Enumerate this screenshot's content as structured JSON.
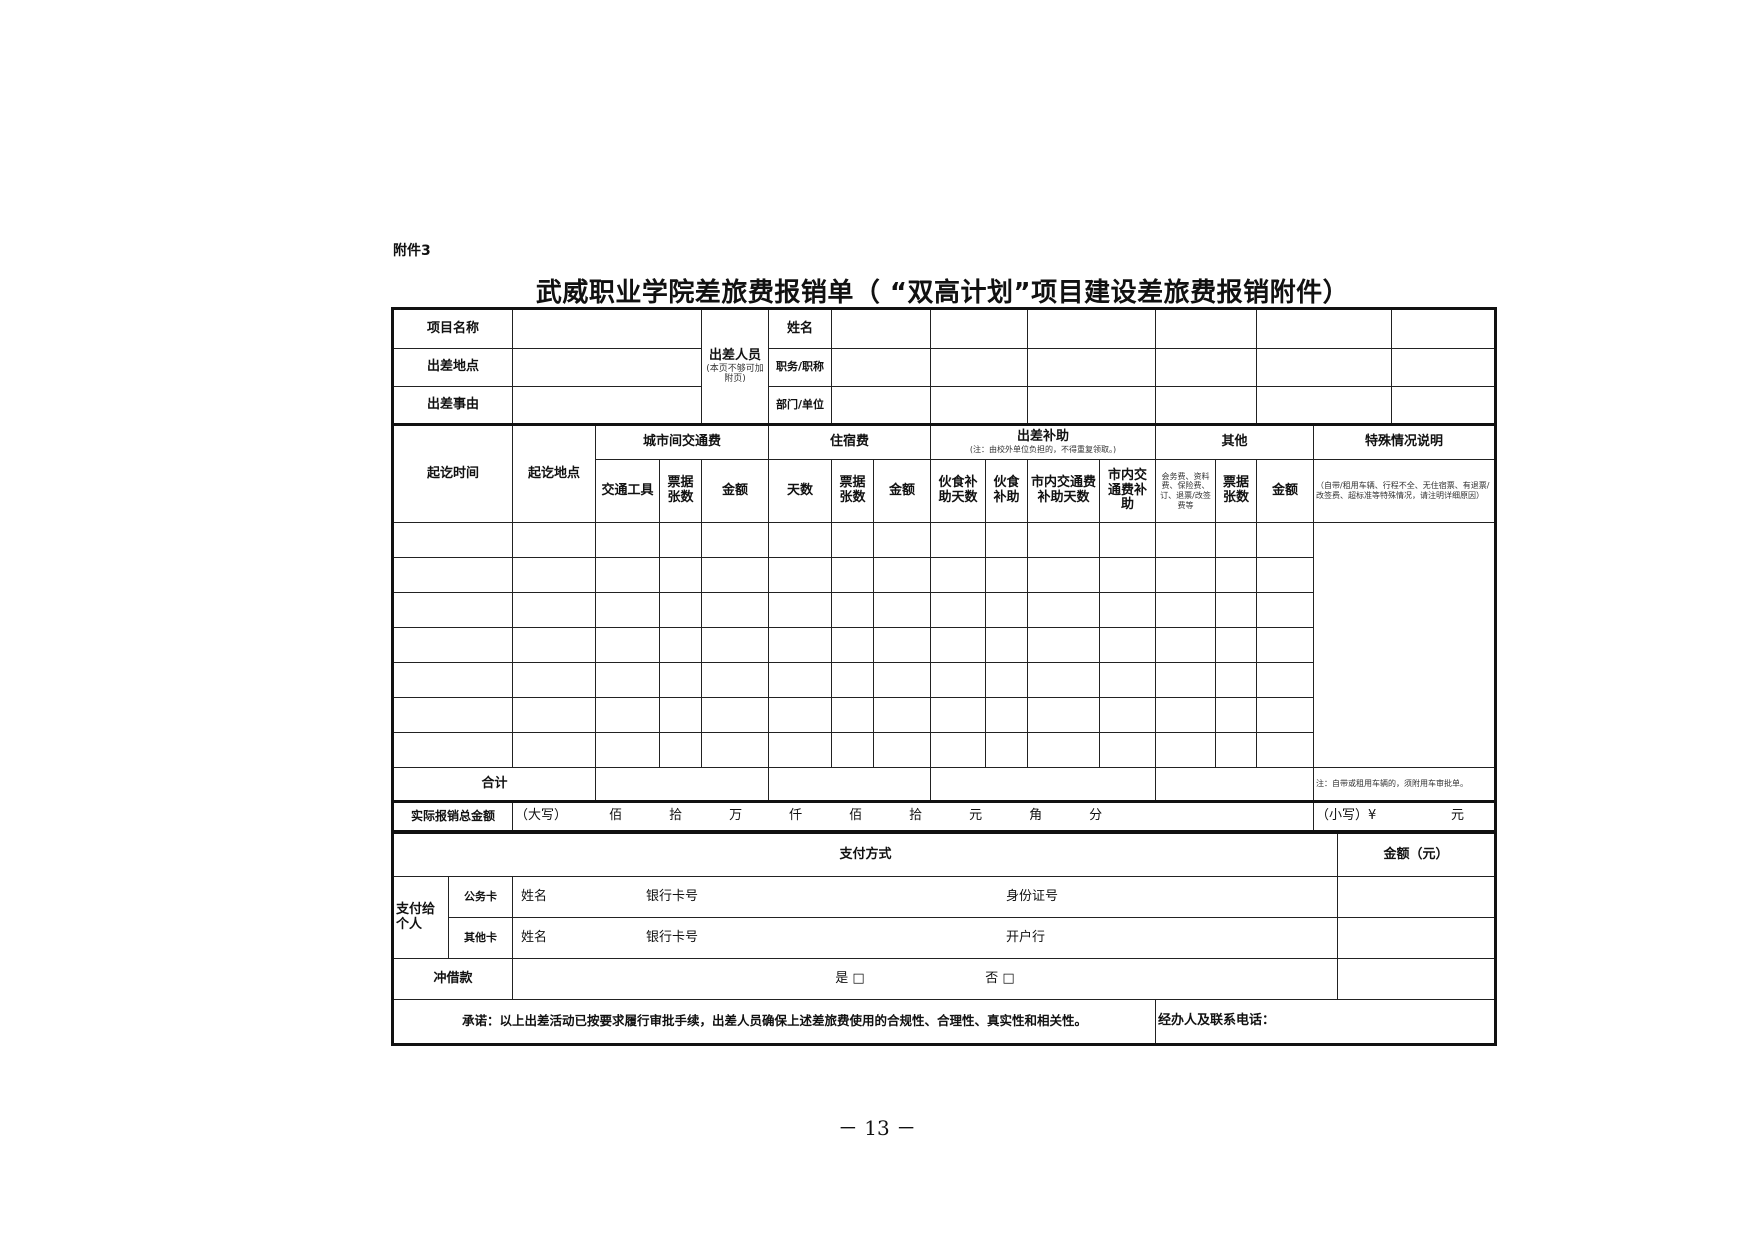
{
  "attachment_label": "附件3",
  "title": "武威职业学院差旅费报销单（ “双高计划”项目建设差旅费报销附件）",
  "top": {
    "project_name": "项目名称",
    "trip_place": "出差地点",
    "trip_reason": "出差事由",
    "personnel": "出差人员",
    "personnel_note": "(本页不够可加附页)",
    "name": "姓名",
    "position": "职务/职称",
    "department": "部门/单位"
  },
  "headers": {
    "start_end_time": "起讫时间",
    "start_end_place": "起讫地点",
    "intercity": "城市间交通费",
    "lodging": "住宿费",
    "allowance": "出差补助",
    "allowance_note": "(注：由校外单位负担的，不得重复领取。)",
    "other": "其他",
    "special": "特殊情况说明",
    "sub": [
      "交通工具",
      "票据张数",
      "金额",
      "天数",
      "票据张数",
      "金额",
      "伙食补助天数",
      "伙食补助",
      "市内交通费补助天数",
      "市内交通费补助",
      "会务费、资料费、保险费、订、退票/改签费等",
      "票据张数",
      "金额"
    ],
    "special_note": "（自带/租用车辆、行程不全、无住宿票、有退票/改签费、超标准等特殊情况，请注明详细原因）"
  },
  "total": {
    "label": "合计",
    "note": "注：自带或租用车辆的，须附用车审批单。"
  },
  "actual": {
    "label": "实际报销总金额",
    "upper": "（大写）",
    "units": [
      "佰",
      "拾",
      "万",
      "仟",
      "佰",
      "拾",
      "元",
      "角",
      "分"
    ],
    "lower": "（小写）¥",
    "yuan": "元"
  },
  "payment": {
    "method": "支付方式",
    "amount": "金额（元）",
    "to_person": "支付给个人",
    "official_card": "公务卡",
    "other_card": "其他卡",
    "name": "姓名",
    "card_no": "银行卡号",
    "id_no": "身份证号",
    "bank": "开户行",
    "offset": "冲借款",
    "yes": "是 □",
    "no": "否 □",
    "promise": "承诺：以上出差活动已按要求履行审批手续，出差人员确保上述差旅费使用的合规性、合理性、真实性和相关性。",
    "handler": "经办人及联系电话："
  },
  "page_number": "－ 13 －"
}
